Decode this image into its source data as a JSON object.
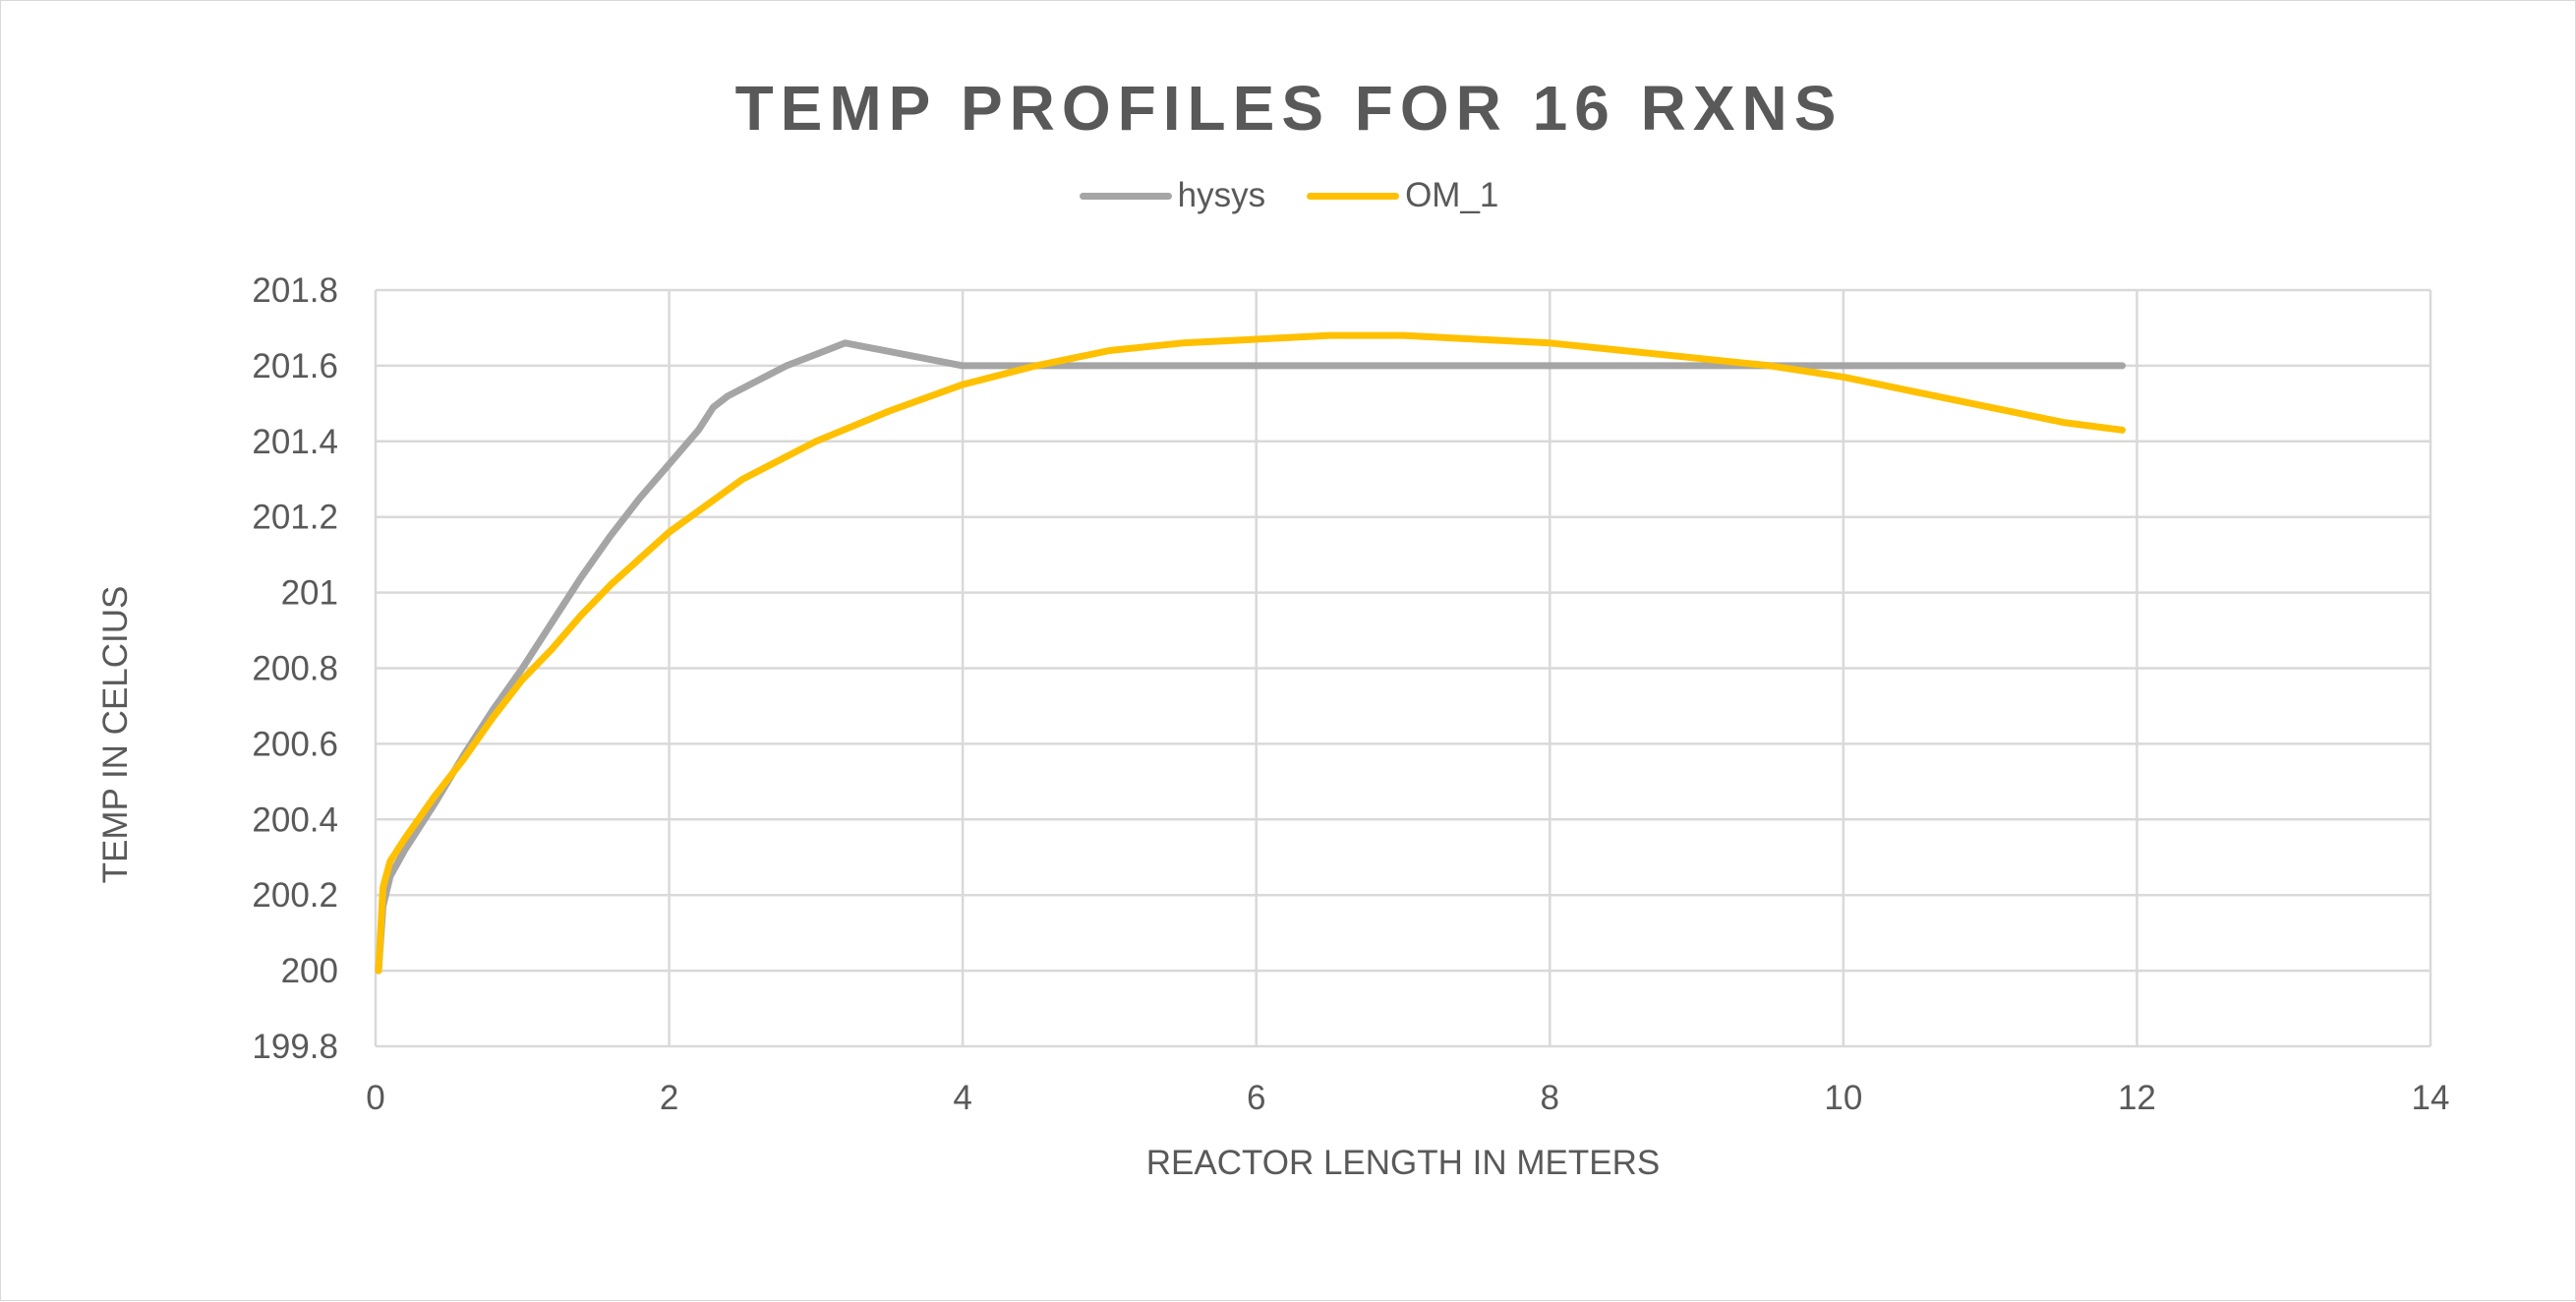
{
  "chart_data": {
    "type": "line",
    "title": "TEMP PROFILES FOR 16 RXNS",
    "xlabel": "REACTOR LENGTH IN METERS",
    "ylabel": "TEMP IN CELCIUS",
    "xlim": [
      0,
      14
    ],
    "ylim": [
      199.8,
      201.8
    ],
    "x_ticks": [
      "0",
      "2",
      "4",
      "6",
      "8",
      "10",
      "12",
      "14"
    ],
    "y_ticks": [
      "199.8",
      "200",
      "200.2",
      "200.4",
      "200.6",
      "200.8",
      "201",
      "201.2",
      "201.4",
      "201.6",
      "201.8"
    ],
    "grid": true,
    "legend_position": "top",
    "series": [
      {
        "name": "hysys",
        "color": "#a5a5a5",
        "x": [
          0.02,
          0.05,
          0.1,
          0.2,
          0.4,
          0.6,
          0.8,
          1.0,
          1.2,
          1.4,
          1.6,
          1.8,
          2.0,
          2.2,
          2.3,
          2.4,
          2.6,
          2.8,
          3.0,
          3.2,
          4,
          6,
          8,
          10,
          11.9
        ],
        "y": [
          200.0,
          200.17,
          200.25,
          200.32,
          200.44,
          200.57,
          200.69,
          200.8,
          200.92,
          201.04,
          201.15,
          201.25,
          201.34,
          201.43,
          201.49,
          201.52,
          201.56,
          201.6,
          201.63,
          201.66,
          201.6,
          201.6,
          201.6,
          201.6,
          201.6
        ]
      },
      {
        "name": "OM_1",
        "color": "#ffc000",
        "x": [
          0.02,
          0.05,
          0.1,
          0.2,
          0.4,
          0.6,
          0.8,
          1.0,
          1.2,
          1.4,
          1.6,
          1.8,
          2.0,
          2.5,
          3.0,
          3.5,
          4.0,
          4.5,
          5.0,
          5.5,
          6.0,
          6.5,
          7.0,
          7.5,
          8.0,
          8.5,
          9.0,
          9.5,
          10.0,
          10.5,
          11.0,
          11.5,
          11.9
        ],
        "y": [
          200.0,
          200.22,
          200.29,
          200.35,
          200.46,
          200.56,
          200.67,
          200.77,
          200.85,
          200.94,
          201.02,
          201.09,
          201.16,
          201.3,
          201.4,
          201.48,
          201.55,
          201.6,
          201.64,
          201.66,
          201.67,
          201.68,
          201.68,
          201.67,
          201.66,
          201.64,
          201.62,
          201.6,
          201.57,
          201.53,
          201.49,
          201.45,
          201.43
        ]
      }
    ]
  }
}
